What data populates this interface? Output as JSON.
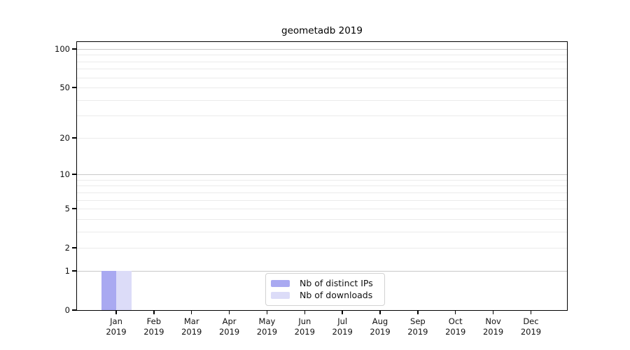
{
  "chart_data": {
    "type": "bar",
    "title": "geometadb 2019",
    "categories": [
      "Jan 2019",
      "Feb 2019",
      "Mar 2019",
      "Apr 2019",
      "May 2019",
      "Jun 2019",
      "Jul 2019",
      "Aug 2019",
      "Sep 2019",
      "Oct 2019",
      "Nov 2019",
      "Dec 2019"
    ],
    "series": [
      {
        "name": "Nb of distinct IPs",
        "color": "#a9a9f1",
        "values": [
          1,
          0,
          0,
          0,
          0,
          0,
          0,
          0,
          0,
          0,
          0,
          0
        ]
      },
      {
        "name": "Nb of downloads",
        "color": "#dcdcf8",
        "values": [
          1,
          0,
          0,
          0,
          0,
          0,
          0,
          0,
          0,
          0,
          0,
          0
        ]
      }
    ],
    "xlabel": "",
    "ylabel": "",
    "y_axis": {
      "scale": "log1p",
      "ticks": [
        0,
        1,
        2,
        5,
        10,
        20,
        50,
        100
      ],
      "ylim": [
        0,
        113
      ],
      "major_gridlines": [
        1,
        10,
        100
      ],
      "minor_gridlines": [
        2,
        3,
        4,
        5,
        6,
        7,
        8,
        9,
        20,
        30,
        40,
        50,
        60,
        70,
        80,
        90
      ]
    },
    "grid": true,
    "legend_position": "bottom-center"
  },
  "colors": {
    "axis": "#000000",
    "major_grid": "#c9c9c9",
    "minor_grid": "#ebebeb",
    "text": "#111111",
    "legend_border": "#d2d2d2",
    "legend_bg": "#ffffff",
    "background": "#ffffff"
  }
}
